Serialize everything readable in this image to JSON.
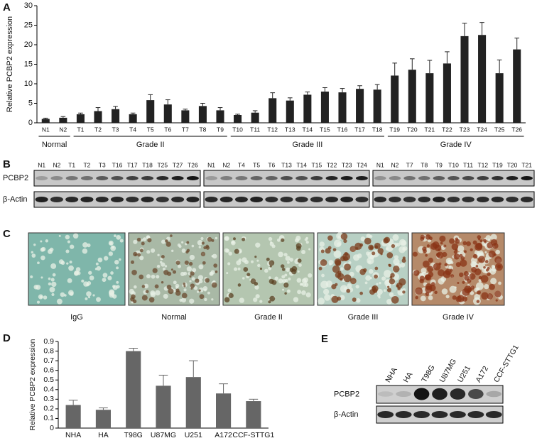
{
  "chart_data": [
    {
      "type": "bar",
      "panel": "A",
      "y_label": "Relative PCBP2 expression",
      "categories": [
        "N1",
        "N2",
        "T1",
        "T2",
        "T3",
        "T4",
        "T5",
        "T6",
        "T7",
        "T8",
        "T9",
        "T10",
        "T11",
        "T12",
        "T13",
        "T14",
        "T15",
        "T16",
        "T17",
        "T18",
        "T19",
        "T20",
        "T21",
        "T22",
        "T23",
        "T24",
        "T25",
        "T26"
      ],
      "values": [
        1.0,
        1.3,
        2.2,
        3.0,
        3.5,
        2.2,
        5.8,
        4.7,
        3.2,
        4.3,
        3.2,
        2.0,
        2.6,
        6.3,
        5.7,
        7.2,
        8.0,
        7.8,
        8.7,
        8.5,
        12.1,
        13.6,
        12.7,
        15.2,
        22.2,
        22.5,
        12.7,
        18.8
      ],
      "errors": [
        0.2,
        0.3,
        0.3,
        0.9,
        0.7,
        0.3,
        1.4,
        1.2,
        0.3,
        0.7,
        0.7,
        0.2,
        0.5,
        1.4,
        0.7,
        0.7,
        1.0,
        1.0,
        0.8,
        1.3,
        3.2,
        2.8,
        3.3,
        3.0,
        3.3,
        3.2,
        3.4,
        2.9
      ],
      "color": "#222222",
      "ylim": [
        0,
        30
      ],
      "yticks": [
        0,
        5,
        10,
        15,
        20,
        25,
        30
      ],
      "groups": [
        {
          "label": "Normal",
          "from": "N1",
          "to": "N2"
        },
        {
          "label": "Grade II",
          "from": "T1",
          "to": "T9"
        },
        {
          "label": "Grade III",
          "from": "T10",
          "to": "T18"
        },
        {
          "label": "Grade IV",
          "from": "T19",
          "to": "T26"
        }
      ]
    },
    {
      "type": "bar",
      "panel": "D",
      "y_label": "Relative PCBP2 expression",
      "categories": [
        "NHA",
        "HA",
        "T98G",
        "U87MG",
        "U251",
        "A172",
        "CCF-STTG1"
      ],
      "values": [
        0.24,
        0.19,
        0.8,
        0.44,
        0.53,
        0.36,
        0.28
      ],
      "errors": [
        0.05,
        0.02,
        0.03,
        0.11,
        0.17,
        0.1,
        0.02
      ],
      "color": "#666666",
      "ylim": [
        0,
        0.9
      ],
      "yticks": [
        0,
        0.1,
        0.2,
        0.3,
        0.4,
        0.5,
        0.6,
        0.7,
        0.8,
        0.9
      ]
    }
  ],
  "blots_b": {
    "panel": "B",
    "row_labels": [
      "PCBP2",
      "β-Actin"
    ],
    "strips": [
      [
        "N1",
        "N2",
        "T1",
        "T2",
        "T3",
        "T16",
        "T17",
        "T18",
        "T25",
        "T27",
        "T26"
      ],
      [
        "N1",
        "N2",
        "T4",
        "T5",
        "T6",
        "T13",
        "T14",
        "T15",
        "T22",
        "T23",
        "T24"
      ],
      [
        "N1",
        "N2",
        "T7",
        "T8",
        "T9",
        "T10",
        "T11",
        "T12",
        "T19",
        "T20",
        "T21"
      ]
    ]
  },
  "histology": {
    "panel": "C",
    "labels": [
      "IgG",
      "Normal",
      "Grade II",
      "Grade III",
      "Grade IV"
    ]
  },
  "blot_e": {
    "panel": "E",
    "lanes": [
      "NHA",
      "HA",
      "T98G",
      "U87MG",
      "U251",
      "A172",
      "CCF-STTG1"
    ],
    "row_labels": [
      "PCBP2",
      "β-Actin"
    ]
  }
}
